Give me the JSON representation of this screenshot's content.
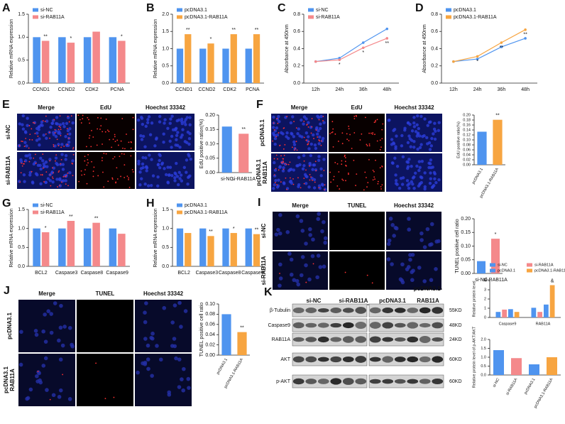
{
  "chart_data": [
    {
      "panel": "A",
      "type": "bar",
      "ylabel": "Relative mRNA expression",
      "categories": [
        "CCND1",
        "CCND2",
        "CDK2",
        "PCNA"
      ],
      "series": [
        {
          "name": "si-NC",
          "color": "#4f94ef",
          "values": [
            1.0,
            1.0,
            1.0,
            1.0
          ]
        },
        {
          "name": "si-RAB11A",
          "color": "#f4898b",
          "values": [
            0.92,
            0.88,
            1.12,
            0.92
          ],
          "significance": [
            "**",
            "*",
            null,
            "*"
          ]
        }
      ],
      "ylim": [
        0,
        1.5
      ],
      "yticks": [
        {
          "value": 0,
          "label": "0.0"
        },
        0.5,
        {
          "value": 1,
          "label": "1.0"
        },
        1.5
      ],
      "legend": "upper left"
    },
    {
      "panel": "B",
      "type": "bar",
      "ylabel": "Relative mRNA expression",
      "categories": [
        "CCND1",
        "CCND2",
        "CDK2",
        "PCNA"
      ],
      "series": [
        {
          "name": "pcDNA3.1",
          "color": "#4f94ef",
          "values": [
            1.0,
            1.0,
            1.0,
            1.0
          ]
        },
        {
          "name": "pcDNA3.1-RAB11A",
          "color": "#f7a541",
          "values": [
            1.42,
            1.15,
            1.42,
            1.42
          ],
          "significance": [
            "**",
            "*",
            "**",
            "**"
          ]
        }
      ],
      "ylim": [
        0,
        2
      ],
      "yticks": [
        {
          "value": 0,
          "label": "0.0"
        },
        0.5,
        {
          "value": 1,
          "label": "1.0"
        },
        1.5,
        {
          "value": 2,
          "label": "2.0"
        }
      ],
      "legend": "upper left"
    },
    {
      "panel": "C",
      "type": "line",
      "ylabel": "Absorbance at 450nm",
      "categories": [
        "12h",
        "24h",
        "36h",
        "48h"
      ],
      "series": [
        {
          "name": "si-NC",
          "color": "#4f94ef",
          "values": [
            0.25,
            0.29,
            0.47,
            0.63
          ]
        },
        {
          "name": "si-RAB11A",
          "color": "#f4898b",
          "values": [
            0.25,
            0.27,
            0.41,
            0.52
          ],
          "significance": [
            null,
            "*",
            "*",
            "**"
          ]
        }
      ],
      "ylim": [
        0,
        0.8
      ],
      "yticks": [
        {
          "value": 0,
          "label": "0.0"
        },
        0.2,
        0.4,
        0.6,
        0.8
      ],
      "legend": "upper left"
    },
    {
      "panel": "D",
      "type": "line",
      "ylabel": "Absorbance at 450nm",
      "categories": [
        "12h",
        "24h",
        "36h",
        "48h"
      ],
      "series": [
        {
          "name": "pcDNA3.1",
          "color": "#4f94ef",
          "values": [
            0.25,
            0.28,
            0.42,
            0.52
          ]
        },
        {
          "name": "pcDNA3.1-RAB11A",
          "color": "#f7a541",
          "values": [
            0.25,
            0.31,
            0.47,
            0.62
          ],
          "significance": [
            null,
            "*",
            "**",
            "**"
          ]
        }
      ],
      "ylim": [
        0,
        0.8
      ],
      "yticks": [
        {
          "value": 0,
          "label": "0.0"
        },
        0.2,
        0.4,
        0.6,
        0.8
      ],
      "legend": "upper left"
    },
    {
      "type": "bar",
      "ylabel": "EdU positive ration(%)",
      "categories": [
        "si-NC",
        "si-RAB11A"
      ],
      "values": [
        0.16,
        0.135
      ],
      "colors": [
        "#4f94ef",
        "#f4898b"
      ],
      "significance": [
        null,
        "**"
      ],
      "ylim": [
        0,
        0.2
      ],
      "yticks": [
        {
          "value": 0,
          "label": "0.00"
        },
        0.05,
        {
          "value": 0.1,
          "label": "0.10"
        },
        0.15,
        {
          "value": 0.2,
          "label": "0.20"
        }
      ]
    },
    {
      "type": "bar",
      "ylabel": "EdU positive ratio(%)",
      "categories": [
        "pcDNA3.1",
        "pcDNA3.1-RAB11A"
      ],
      "values": [
        0.133,
        0.181
      ],
      "colors": [
        "#4f94ef",
        "#f7a541"
      ],
      "significance": [
        null,
        "**"
      ],
      "ylim": [
        0,
        0.2
      ],
      "yticks": [
        {
          "value": 0,
          "label": "0.00"
        },
        0.02,
        0.04,
        0.06,
        0.08,
        {
          "value": 0.1,
          "label": "0.10"
        },
        0.12,
        0.14,
        0.16,
        0.18,
        {
          "value": 0.2,
          "label": "0.20"
        }
      ]
    },
    {
      "panel": "G",
      "type": "bar",
      "ylabel": "Relative mRNA expression",
      "categories": [
        "BCL2",
        "Caspase3",
        "Caspase8",
        "Caspase9"
      ],
      "series": [
        {
          "name": "si-NC",
          "color": "#4f94ef",
          "values": [
            1.0,
            1.0,
            1.0,
            1.0
          ]
        },
        {
          "name": "si-RAB11A",
          "color": "#f4898b",
          "values": [
            0.9,
            1.2,
            1.15,
            0.86
          ],
          "significance": [
            "*",
            "**",
            "**",
            null
          ]
        }
      ],
      "ylim": [
        0,
        1.5
      ],
      "yticks": [
        {
          "value": 0,
          "label": "0.0"
        },
        0.5,
        {
          "value": 1,
          "label": "1.0"
        },
        1.5
      ],
      "legend": "upper left"
    },
    {
      "panel": "H",
      "type": "bar",
      "ylabel": "Relative mRNA expression",
      "categories": [
        "BCL2",
        "Caspase3",
        "Caspase8",
        "Caspase9"
      ],
      "series": [
        {
          "name": "pcDNA3.1",
          "color": "#4f94ef",
          "values": [
            1.0,
            1.0,
            1.0,
            1.0
          ]
        },
        {
          "name": "pcDNA3.1-RAB11A",
          "color": "#f7a541",
          "values": [
            0.88,
            0.8,
            0.88,
            0.85
          ],
          "significance": [
            null,
            "**",
            "*",
            "**"
          ]
        }
      ],
      "ylim": [
        0,
        1.5
      ],
      "yticks": [
        {
          "value": 0,
          "label": "0.0"
        },
        0.5,
        {
          "value": 1,
          "label": "1.0"
        },
        1.5
      ],
      "legend": "upper left"
    },
    {
      "type": "bar",
      "ylabel": "TUNEL positive cell ratio",
      "categories": [
        "si-NC",
        "si-RAB11A"
      ],
      "values": [
        0.045,
        0.127
      ],
      "colors": [
        "#4f94ef",
        "#f4898b"
      ],
      "significance": [
        null,
        "*"
      ],
      "ylim": [
        0,
        0.2
      ],
      "yticks": [
        {
          "value": 0,
          "label": "0.00"
        },
        0.05,
        {
          "value": 0.1,
          "label": "0.10"
        },
        0.15,
        {
          "value": 0.2,
          "label": "0.20"
        }
      ]
    },
    {
      "type": "bar",
      "ylabel": "TUNEL positive cell ratio",
      "categories": [
        "pcDNA3.1",
        "pcDNA3.1-RAB11A"
      ],
      "values": [
        0.08,
        0.045
      ],
      "colors": [
        "#4f94ef",
        "#f7a541"
      ],
      "significance": [
        null,
        "**"
      ],
      "ylim": [
        0,
        0.1
      ],
      "yticks": [
        {
          "value": 0,
          "label": "0.00"
        },
        0.02,
        0.04,
        0.06,
        0.08,
        {
          "value": 0.1,
          "label": "0.10"
        }
      ]
    },
    {
      "type": "bar",
      "ylabel": "Relative protein level",
      "categories": [
        "Caspase9",
        "RAB11A"
      ],
      "series": [
        {
          "name": "si-NC",
          "color": "#4f94ef",
          "values": [
            0.6,
            1.05
          ]
        },
        {
          "name": "si-RAB11A",
          "color": "#f4898b",
          "values": [
            0.85,
            0.6
          ]
        },
        {
          "name": "pcDNA3.1",
          "color": "#4f94ef",
          "values": [
            0.9,
            1.4
          ]
        },
        {
          "name": "pcDNA3.1-RAB11A",
          "color": "#f7a541",
          "values": [
            0.6,
            3.5
          ],
          "significance": [
            null,
            "&"
          ]
        }
      ],
      "ylim": [
        0,
        4
      ],
      "yticks": [
        0,
        1,
        2,
        3,
        4
      ],
      "legend": "top"
    },
    {
      "type": "bar",
      "ylabel": "Relative protein level of p-AKT/AKT",
      "categories": [
        "si-NC",
        "si-RAB11A",
        "pcDNA3.1",
        "pcDNA3.1-RAB11A"
      ],
      "values": [
        1.4,
        0.95,
        0.6,
        1.0
      ],
      "colors": [
        "#4f94ef",
        "#f4898b",
        "#4f94ef",
        "#f7a541"
      ],
      "ylim": [
        0,
        2
      ],
      "yticks": [
        {
          "value": 0,
          "label": "0.0"
        },
        0.5,
        {
          "value": 1,
          "label": "1.0"
        },
        1.5,
        {
          "value": 2,
          "label": "2.0"
        }
      ]
    }
  ],
  "image_panels": [
    {
      "panel": "E",
      "kind": "edu",
      "columns": [
        "Merge",
        "EdU",
        "Hoechst 33342"
      ],
      "rows": [
        [
          "si-NC"
        ],
        [
          "si-RAB11A"
        ]
      ]
    },
    {
      "panel": "F",
      "kind": "edu",
      "columns": [
        "Merge",
        "EdU",
        "Hoechst 33342"
      ],
      "rows": [
        [
          "pcDNA3.1"
        ],
        [
          "pcDNA3.1",
          "RAB11A"
        ]
      ]
    },
    {
      "panel": "I",
      "kind": "tunel",
      "columns": [
        "Merge",
        "TUNEL",
        "Hoechst 33342"
      ],
      "rows": [
        [
          "si-NC"
        ],
        [
          "si-RAB11A"
        ]
      ]
    },
    {
      "panel": "J",
      "kind": "tunel",
      "columns": [
        "Merge",
        "TUNEL",
        "Hoechst 33342"
      ],
      "rows": [
        [
          "pcDNA3.1"
        ],
        [
          "pcDNA3.1",
          "RAB11A"
        ]
      ]
    }
  ],
  "blot": {
    "panel": "K",
    "groups": [
      [
        "si-NC"
      ],
      [
        "si-RAB11A"
      ],
      [
        "pcDNA3.1"
      ],
      [
        "pcDNA3.1-",
        "RAB11A"
      ]
    ],
    "rows": [
      {
        "label": "β-Tubulin",
        "size": "55KD"
      },
      {
        "label": "Caspase9",
        "size": "48KD"
      },
      {
        "label": "RAB11A",
        "size": "24KD"
      },
      {
        "label": "AKT",
        "size": "60KD"
      },
      {
        "label": "p-AKT",
        "size": "60KD"
      }
    ]
  }
}
